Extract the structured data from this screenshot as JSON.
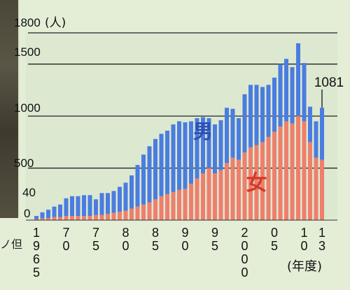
{
  "photo_caption": "ノ但",
  "chart_data": {
    "type": "bar",
    "stacked": true,
    "ylabel": "(人)",
    "xlabel": "(年度)",
    "ylim": [
      0,
      1800
    ],
    "yticks": [
      {
        "value": 0,
        "label": "0"
      },
      {
        "value": 40,
        "label": "40"
      },
      {
        "value": 500,
        "label": "500"
      },
      {
        "value": 1000,
        "label": "1000"
      },
      {
        "value": 1500,
        "label": "1500"
      },
      {
        "value": 1800,
        "label": "1800"
      }
    ],
    "gridlines": [
      500,
      1000,
      1500,
      1800
    ],
    "x_start": 1965,
    "x_end": 2013,
    "xticks": [
      {
        "year": 1965,
        "label": "1965"
      },
      {
        "year": 1970,
        "label": "70"
      },
      {
        "year": 1975,
        "label": "75"
      },
      {
        "year": 1980,
        "label": "80"
      },
      {
        "year": 1985,
        "label": "85"
      },
      {
        "year": 1990,
        "label": "90"
      },
      {
        "year": 1995,
        "label": "95"
      },
      {
        "year": 2000,
        "label": "2000"
      },
      {
        "year": 2005,
        "label": "05"
      },
      {
        "year": 2010,
        "label": "10"
      },
      {
        "year": 2013,
        "label": "13"
      }
    ],
    "series": [
      {
        "name": "女",
        "color": "#ee7f6c",
        "values": [
          10,
          15,
          20,
          30,
          30,
          40,
          40,
          40,
          40,
          40,
          50,
          50,
          60,
          70,
          80,
          90,
          110,
          130,
          150,
          170,
          200,
          230,
          250,
          270,
          290,
          300,
          350,
          400,
          450,
          500,
          450,
          480,
          550,
          600,
          580,
          650,
          700,
          720,
          750,
          800,
          850,
          900,
          950,
          930,
          1000,
          950,
          750,
          600,
          580
        ]
      },
      {
        "name": "男",
        "color": "#4a7de0",
        "values": [
          30,
          60,
          80,
          100,
          120,
          170,
          190,
          190,
          200,
          200,
          150,
          210,
          200,
          210,
          240,
          270,
          320,
          400,
          480,
          540,
          580,
          600,
          610,
          650,
          660,
          640,
          600,
          580,
          540,
          480,
          470,
          480,
          530,
          470,
          400,
          560,
          600,
          580,
          530,
          500,
          520,
          600,
          600,
          540,
          700,
          560,
          340,
          350,
          500
        ]
      }
    ],
    "annotations": [
      {
        "text": "1081",
        "year": 2013,
        "value": 1081
      },
      {
        "text": "男",
        "year": 1993,
        "value": 790
      },
      {
        "text": "女",
        "year": 2002,
        "value": 290
      }
    ]
  }
}
